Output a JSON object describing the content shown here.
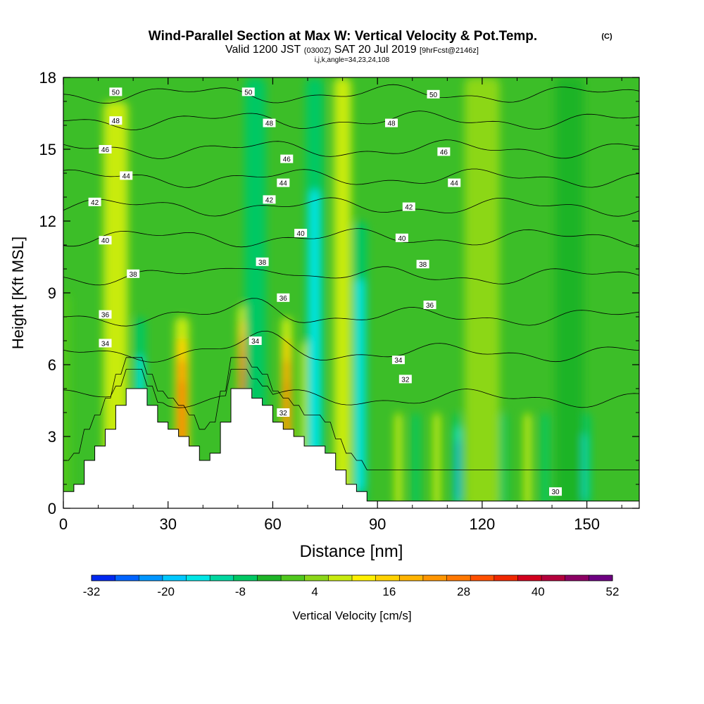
{
  "header": {
    "title": "Wind-Parallel Section at Max W: Vertical Velocity & Pot.Temp.",
    "copyright": "(C)",
    "valid_prefix": "Valid 1200 JST",
    "valid_utc": "(0300Z)",
    "valid_date": "SAT 20 Jul 2019",
    "forecast": "[9hrFcst@2146z]",
    "indices": "i,j,k,angle=34,23,24,108"
  },
  "chart_data": {
    "type": "heatmap",
    "xlabel": "Distance [nm]",
    "ylabel": "Height [Kft MSL]",
    "xlim": [
      0,
      165
    ],
    "ylim": [
      0,
      18
    ],
    "x_ticks": [
      "0",
      "30",
      "60",
      "90",
      "120",
      "150"
    ],
    "x_tick_values": [
      0,
      30,
      60,
      90,
      120,
      150
    ],
    "y_ticks": [
      "0",
      "3",
      "6",
      "9",
      "12",
      "15",
      "18"
    ],
    "y_tick_values": [
      0,
      3,
      6,
      9,
      12,
      15,
      18
    ],
    "colorbar": {
      "label": "Vertical Velocity [cm/s]",
      "tick_labels": [
        "-32",
        "-20",
        "-8",
        "4",
        "16",
        "28",
        "40",
        "52"
      ],
      "min": -32,
      "max": 52,
      "step": 4,
      "colors": [
        "#0028f0",
        "#0064ff",
        "#0096ff",
        "#00c8ff",
        "#00e6e6",
        "#00d7a0",
        "#00c864",
        "#1eb428",
        "#50c81e",
        "#8cd719",
        "#c8eb0f",
        "#fff000",
        "#ffd200",
        "#ffb400",
        "#ff9600",
        "#ff7800",
        "#ff5000",
        "#f02800",
        "#d2001e",
        "#b4003c",
        "#8c0064",
        "#6e0082"
      ]
    },
    "terrain": [
      [
        0,
        0.7
      ],
      [
        3,
        0.7
      ],
      [
        3,
        1
      ],
      [
        6,
        1
      ],
      [
        6,
        2
      ],
      [
        9,
        2
      ],
      [
        9,
        2.6
      ],
      [
        12,
        2.6
      ],
      [
        12,
        3.3
      ],
      [
        15,
        3.3
      ],
      [
        15,
        4.3
      ],
      [
        18,
        4.3
      ],
      [
        18,
        5
      ],
      [
        24,
        5
      ],
      [
        24,
        4.3
      ],
      [
        27,
        4.3
      ],
      [
        27,
        3.6
      ],
      [
        30,
        3.6
      ],
      [
        30,
        3.3
      ],
      [
        33,
        3.3
      ],
      [
        33,
        3
      ],
      [
        36,
        3
      ],
      [
        36,
        2.6
      ],
      [
        39,
        2.6
      ],
      [
        39,
        2
      ],
      [
        42,
        2
      ],
      [
        42,
        2.3
      ],
      [
        45,
        2.3
      ],
      [
        45,
        3.6
      ],
      [
        48,
        3.6
      ],
      [
        48,
        5
      ],
      [
        54,
        5
      ],
      [
        54,
        4.6
      ],
      [
        57,
        4.6
      ],
      [
        57,
        4.3
      ],
      [
        60,
        4.3
      ],
      [
        60,
        3.6
      ],
      [
        63,
        3.6
      ],
      [
        63,
        3.3
      ],
      [
        66,
        3.3
      ],
      [
        66,
        3
      ],
      [
        69,
        3
      ],
      [
        69,
        2.6
      ],
      [
        75,
        2.6
      ],
      [
        75,
        2.3
      ],
      [
        78,
        2.3
      ],
      [
        78,
        1.6
      ],
      [
        81,
        1.6
      ],
      [
        81,
        1
      ],
      [
        84,
        1
      ],
      [
        84,
        0.7
      ],
      [
        87,
        0.7
      ],
      [
        87,
        0.3
      ],
      [
        165,
        0.3
      ]
    ],
    "velocity_columns": [
      {
        "x": 0,
        "w": 4,
        "peak": 0,
        "height": 9
      },
      {
        "x": 15,
        "w": 7,
        "peak": 12,
        "height": 17
      },
      {
        "x": 22,
        "w": 3,
        "peak": -16,
        "height": 8
      },
      {
        "x": 34,
        "w": 4,
        "peak": 36,
        "height": 8
      },
      {
        "x": 52,
        "w": 4,
        "peak": 52,
        "height": 8.5
      },
      {
        "x": 64,
        "w": 3,
        "peak": 32,
        "height": 8
      },
      {
        "x": 70,
        "w": 4,
        "peak": 14,
        "height": 7
      },
      {
        "x": 55,
        "w": 6,
        "peak": -12,
        "height": 18
      },
      {
        "x": 72,
        "w": 5,
        "peak": -16,
        "height": 18
      },
      {
        "x": 80,
        "w": 5,
        "peak": 14,
        "height": 18
      },
      {
        "x": 85,
        "w": 4,
        "peak": -16,
        "height": 12
      },
      {
        "x": 96,
        "w": 2,
        "peak": 12,
        "height": 4
      },
      {
        "x": 101,
        "w": 2,
        "peak": -14,
        "height": 4
      },
      {
        "x": 107,
        "w": 2,
        "peak": 10,
        "height": 4
      },
      {
        "x": 113,
        "w": 2,
        "peak": -24,
        "height": 4
      },
      {
        "x": 119,
        "w": 2,
        "peak": 8,
        "height": 4
      },
      {
        "x": 126,
        "w": 2,
        "peak": -12,
        "height": 4
      },
      {
        "x": 133,
        "w": 2,
        "peak": 8,
        "height": 4
      },
      {
        "x": 138,
        "w": 2,
        "peak": -12,
        "height": 4
      },
      {
        "x": 148,
        "w": 6,
        "peak": -16,
        "height": 4
      },
      {
        "x": 120,
        "w": 10,
        "peak": 6,
        "height": 18
      },
      {
        "x": 145,
        "w": 8,
        "peak": -4,
        "height": 18
      }
    ],
    "theta_contours": [
      {
        "value": "30",
        "h": 0.5
      },
      {
        "value": "32",
        "h": 4.6
      },
      {
        "value": "34",
        "h": 6.5
      },
      {
        "value": "36",
        "h": 8.0
      },
      {
        "value": "38",
        "h": 9.7
      },
      {
        "value": "40",
        "h": 11.3
      },
      {
        "value": "42",
        "h": 12.6
      },
      {
        "value": "44",
        "h": 13.8
      },
      {
        "value": "46",
        "h": 15.0
      },
      {
        "value": "48",
        "h": 16.2
      },
      {
        "value": "50",
        "h": 17.3
      }
    ],
    "contour_labels": [
      {
        "text": "50",
        "x": 15,
        "y": 17.4
      },
      {
        "text": "50",
        "x": 53,
        "y": 17.4
      },
      {
        "text": "50",
        "x": 106,
        "y": 17.3
      },
      {
        "text": "48",
        "x": 15,
        "y": 16.2
      },
      {
        "text": "48",
        "x": 59,
        "y": 16.1
      },
      {
        "text": "48",
        "x": 94,
        "y": 16.1
      },
      {
        "text": "46",
        "x": 12,
        "y": 15.0
      },
      {
        "text": "46",
        "x": 64,
        "y": 14.6
      },
      {
        "text": "46",
        "x": 109,
        "y": 14.9
      },
      {
        "text": "44",
        "x": 18,
        "y": 13.9
      },
      {
        "text": "44",
        "x": 63,
        "y": 13.6
      },
      {
        "text": "44",
        "x": 112,
        "y": 13.6
      },
      {
        "text": "42",
        "x": 9,
        "y": 12.8
      },
      {
        "text": "42",
        "x": 59,
        "y": 12.9
      },
      {
        "text": "42",
        "x": 99,
        "y": 12.6
      },
      {
        "text": "40",
        "x": 12,
        "y": 11.2
      },
      {
        "text": "40",
        "x": 68,
        "y": 11.5
      },
      {
        "text": "40",
        "x": 97,
        "y": 11.3
      },
      {
        "text": "38",
        "x": 20,
        "y": 9.8
      },
      {
        "text": "38",
        "x": 57,
        "y": 10.3
      },
      {
        "text": "38",
        "x": 103,
        "y": 10.2
      },
      {
        "text": "36",
        "x": 12,
        "y": 8.1
      },
      {
        "text": "36",
        "x": 63,
        "y": 8.8
      },
      {
        "text": "36",
        "x": 105,
        "y": 8.5
      },
      {
        "text": "34",
        "x": 12,
        "y": 6.9
      },
      {
        "text": "34",
        "x": 55,
        "y": 7.0
      },
      {
        "text": "34",
        "x": 96,
        "y": 6.2
      },
      {
        "text": "32",
        "x": 63,
        "y": 4.0
      },
      {
        "text": "32",
        "x": 98,
        "y": 5.4
      },
      {
        "text": "30",
        "x": 141,
        "y": 0.7
      }
    ]
  },
  "colors": {
    "background": "#ffffff",
    "plot_base": "#3cbe28",
    "terrain": "#ffffff",
    "contour": "#000000"
  }
}
